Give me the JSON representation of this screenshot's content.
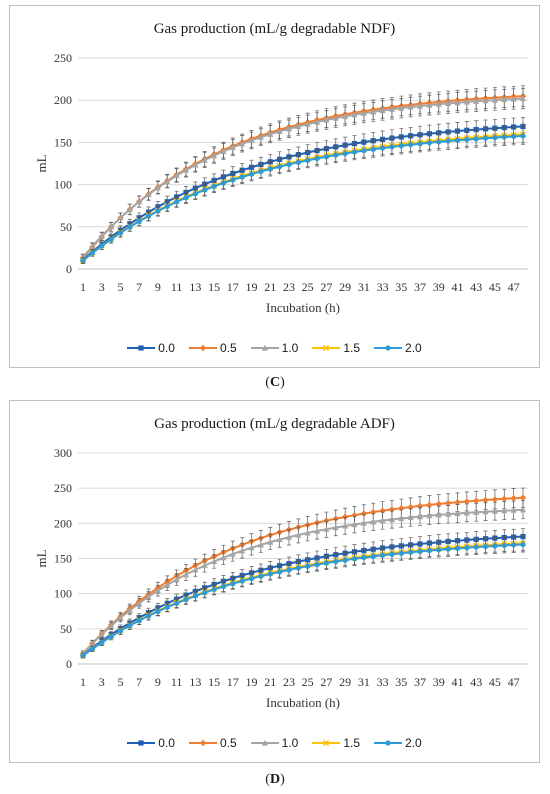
{
  "chart_data": [
    {
      "panel": "C",
      "type": "line",
      "title": "Gas production (mL/g degradable NDF)",
      "xlabel": "Incubation (h)",
      "ylabel": "mL",
      "ylim": [
        0,
        250
      ],
      "yticks": [
        0,
        50,
        100,
        150,
        200,
        250
      ],
      "x": [
        1,
        2,
        3,
        4,
        5,
        6,
        7,
        8,
        9,
        10,
        11,
        12,
        13,
        14,
        15,
        16,
        17,
        18,
        19,
        20,
        21,
        22,
        23,
        24,
        25,
        26,
        27,
        28,
        29,
        30,
        31,
        32,
        33,
        34,
        35,
        36,
        37,
        38,
        39,
        40,
        41,
        42,
        43,
        44,
        45,
        46,
        47,
        48
      ],
      "xticks": [
        1,
        3,
        5,
        7,
        9,
        11,
        13,
        15,
        17,
        19,
        21,
        23,
        25,
        27,
        29,
        31,
        33,
        35,
        37,
        39,
        41,
        43,
        45,
        47
      ],
      "legend_position": "bottom",
      "error_bars": true,
      "series": [
        {
          "name": "0.0",
          "color": "#1f5fb4",
          "marker": "square",
          "start": 11,
          "plateau": 180,
          "k": 0.058
        },
        {
          "name": "0.5",
          "color": "#ed7d31",
          "marker": "diamond",
          "start": 13,
          "plateau": 213,
          "k": 0.068
        },
        {
          "name": "1.0",
          "color": "#a5a5a5",
          "marker": "triangle",
          "start": 14,
          "plateau": 210,
          "k": 0.068
        },
        {
          "name": "1.5",
          "color": "#ffc000",
          "marker": "cross",
          "start": 10,
          "plateau": 170,
          "k": 0.058
        },
        {
          "name": "2.0",
          "color": "#2e9bd6",
          "marker": "circle",
          "start": 10,
          "plateau": 168,
          "k": 0.058
        }
      ]
    },
    {
      "panel": "D",
      "type": "line",
      "title": "Gas production (mL/g degradable ADF)",
      "xlabel": "Incubation (h)",
      "ylabel": "mL",
      "ylim": [
        0,
        300
      ],
      "yticks": [
        0,
        50,
        100,
        150,
        200,
        250,
        300
      ],
      "x": [
        1,
        2,
        3,
        4,
        5,
        6,
        7,
        8,
        9,
        10,
        11,
        12,
        13,
        14,
        15,
        16,
        17,
        18,
        19,
        20,
        21,
        22,
        23,
        24,
        25,
        26,
        27,
        28,
        29,
        30,
        31,
        32,
        33,
        34,
        35,
        36,
        37,
        38,
        39,
        40,
        41,
        42,
        43,
        44,
        45,
        46,
        47,
        48
      ],
      "xticks": [
        1,
        3,
        5,
        7,
        9,
        11,
        13,
        15,
        17,
        19,
        21,
        23,
        25,
        27,
        29,
        31,
        33,
        35,
        37,
        39,
        41,
        43,
        45,
        47
      ],
      "legend_position": "bottom",
      "error_bars": true,
      "series": [
        {
          "name": "0.0",
          "color": "#1f5fb4",
          "marker": "square",
          "start": 13,
          "plateau": 193,
          "k": 0.058
        },
        {
          "name": "0.5",
          "color": "#ed7d31",
          "marker": "diamond",
          "start": 15,
          "plateau": 248,
          "k": 0.064
        },
        {
          "name": "1.0",
          "color": "#a5a5a5",
          "marker": "triangle",
          "start": 15,
          "plateau": 228,
          "k": 0.068
        },
        {
          "name": "1.5",
          "color": "#ffc000",
          "marker": "cross",
          "start": 12,
          "plateau": 183,
          "k": 0.058
        },
        {
          "name": "2.0",
          "color": "#2e9bd6",
          "marker": "circle",
          "start": 12,
          "plateau": 181,
          "k": 0.058
        }
      ]
    }
  ],
  "captions": {
    "c_letter": "C",
    "d_letter": "D",
    "open": "(",
    "close": ")"
  }
}
